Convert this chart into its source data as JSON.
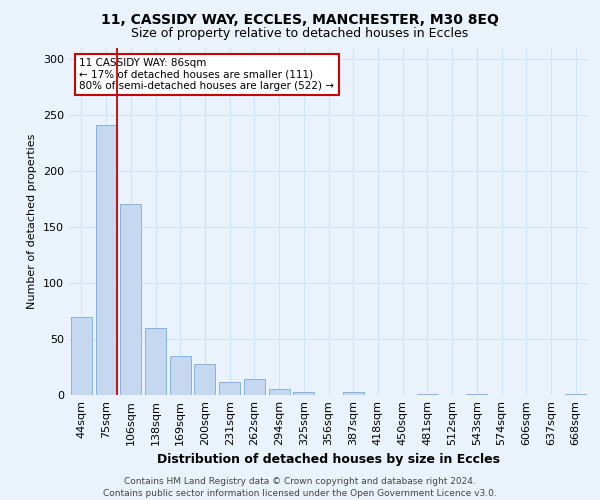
{
  "title1": "11, CASSIDY WAY, ECCLES, MANCHESTER, M30 8EQ",
  "title2": "Size of property relative to detached houses in Eccles",
  "xlabel": "Distribution of detached houses by size in Eccles",
  "ylabel": "Number of detached properties",
  "categories": [
    "44sqm",
    "75sqm",
    "106sqm",
    "138sqm",
    "169sqm",
    "200sqm",
    "231sqm",
    "262sqm",
    "294sqm",
    "325sqm",
    "356sqm",
    "387sqm",
    "418sqm",
    "450sqm",
    "481sqm",
    "512sqm",
    "543sqm",
    "574sqm",
    "606sqm",
    "637sqm",
    "668sqm"
  ],
  "values": [
    70,
    241,
    170,
    60,
    35,
    28,
    12,
    14,
    5,
    3,
    0,
    3,
    0,
    0,
    1,
    0,
    1,
    0,
    0,
    0,
    1
  ],
  "bar_color": "#c5d8f0",
  "bar_edge_color": "#7aabda",
  "grid_color": "#d0e4f5",
  "bg_color": "#eaf3fb",
  "vline_color": "#cc0000",
  "annotation_text": "11 CASSIDY WAY: 86sqm\n← 17% of detached houses are smaller (111)\n80% of semi-detached houses are larger (522) →",
  "annotation_box_color": "#ffffff",
  "annotation_box_edge": "#cc0000",
  "footer": "Contains HM Land Registry data © Crown copyright and database right 2024.\nContains public sector information licensed under the Open Government Licence v3.0.",
  "ylim_max": 310,
  "title1_fontsize": 10,
  "title2_fontsize": 9,
  "xlabel_fontsize": 9,
  "ylabel_fontsize": 8,
  "tick_fontsize": 8,
  "footer_fontsize": 6.5,
  "annot_fontsize": 7.5
}
